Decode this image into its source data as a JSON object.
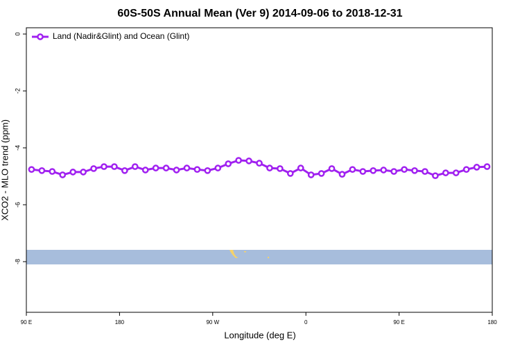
{
  "chart_data": {
    "type": "line",
    "title": "60S-50S Annual Mean (Ver 9)   2014-09-06 to 2018-12-31",
    "xlabel": "Longitude (deg E)",
    "ylabel": "XCO2 - MLO trend (ppm)",
    "x": [
      95,
      105,
      115,
      125,
      135,
      145,
      155,
      165,
      175,
      185,
      195,
      205,
      215,
      225,
      235,
      245,
      255,
      265,
      275,
      285,
      295,
      305,
      315,
      325,
      335,
      345,
      355,
      365,
      375,
      385,
      395,
      405,
      415,
      425,
      435,
      445,
      455,
      465,
      475,
      485,
      495,
      505,
      515,
      525,
      535
    ],
    "series": [
      {
        "name": "Land (Nadir&Glint) and Ocean (Glint)",
        "color": "#a020f0",
        "values": [
          -4.76,
          -4.8,
          -4.83,
          -4.95,
          -4.85,
          -4.85,
          -4.73,
          -4.66,
          -4.66,
          -4.8,
          -4.66,
          -4.78,
          -4.71,
          -4.71,
          -4.78,
          -4.71,
          -4.76,
          -4.8,
          -4.71,
          -4.56,
          -4.44,
          -4.46,
          -4.54,
          -4.71,
          -4.73,
          -4.9,
          -4.71,
          -4.95,
          -4.9,
          -4.73,
          -4.93,
          -4.76,
          -4.83,
          -4.8,
          -4.78,
          -4.83,
          -4.76,
          -4.8,
          -4.83,
          -4.98,
          -4.88,
          -4.88,
          -4.76,
          -4.68,
          -4.66
        ]
      }
    ],
    "xlim": [
      90,
      540
    ],
    "xticks": [
      {
        "value": 90,
        "label": "90 E"
      },
      {
        "value": 180,
        "label": "180"
      },
      {
        "value": 270,
        "label": "90 W"
      },
      {
        "value": 360,
        "label": "0"
      },
      {
        "value": 450,
        "label": "90 E"
      },
      {
        "value": 540,
        "label": "180"
      }
    ],
    "ylim": [
      -9.78,
      0.22
    ],
    "yticks": [
      0,
      -2,
      -4,
      -6,
      -8
    ],
    "legend": "top-left"
  }
}
